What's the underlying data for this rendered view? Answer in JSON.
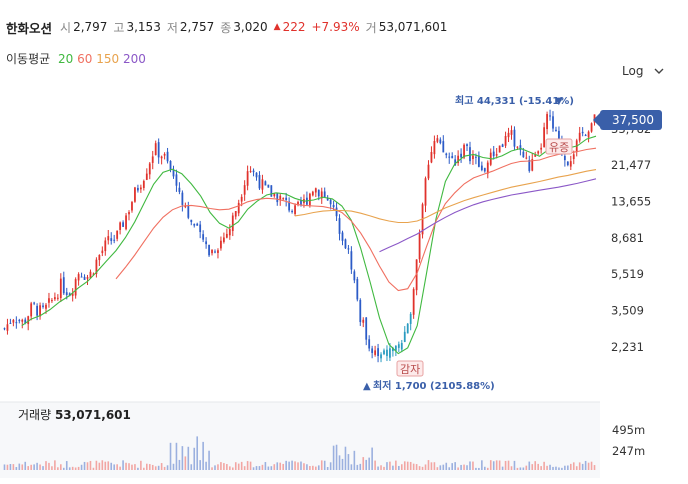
{
  "header": {
    "name": "한화오션",
    "open_label": "시",
    "open": "2,797",
    "high_label": "고",
    "high": "3,153",
    "low_label": "저",
    "low": "2,757",
    "close_label": "종",
    "close": "3,020",
    "change": "222",
    "change_pct": "+7.93%",
    "volume_label": "거",
    "volume": "53,071,601"
  },
  "moving_averages": {
    "label": "이동평균",
    "items": [
      {
        "period": "20",
        "color": "#41b941"
      },
      {
        "period": "60",
        "color": "#f07061"
      },
      {
        "period": "150",
        "color": "#e8a34e"
      },
      {
        "period": "200",
        "color": "#8b58c7"
      }
    ]
  },
  "log_toggle": {
    "label": "Log"
  },
  "current_price": "37,500",
  "volume_panel": {
    "label": "거래량",
    "value": "53,071,601",
    "ticks": [
      "495m",
      "247m"
    ]
  },
  "chart_data": {
    "type": "candlestick",
    "scale": "log",
    "y_ticks": [
      33782,
      21477,
      13655,
      8681,
      5519,
      3509,
      2231
    ],
    "y_tick_labels": [
      "33,782",
      "21,477",
      "13,655",
      "8,681",
      "5,519",
      "3,509",
      "2,231"
    ],
    "ylim": [
      1550,
      46000
    ],
    "max_annotation": "최고 44,331 (-15.41%)",
    "min_annotation": "최저 1,700 (2105.88%)",
    "events": [
      {
        "label": "감자"
      },
      {
        "label": "유증"
      }
    ],
    "price_path": [
      2800,
      3300,
      3000,
      3700,
      3400,
      3900,
      4800,
      4400,
      5800,
      5300,
      6800,
      8200,
      8800,
      11500,
      15500,
      19500,
      26500,
      24000,
      18800,
      14200,
      10400,
      8600,
      7300,
      8200,
      9600,
      13800,
      21000,
      18400,
      15300,
      14800,
      13400,
      12000,
      13500,
      16400,
      15300,
      12400,
      9400,
      6400,
      3200,
      2300,
      1900,
      2100,
      2200,
      2600,
      6600,
      21000,
      29000,
      24500,
      22500,
      26500,
      24000,
      19800,
      23800,
      27500,
      31500,
      26000,
      21000,
      23800,
      40000,
      29500,
      22500,
      27000,
      33500,
      37500
    ],
    "ma_lines": [
      {
        "name": "20",
        "values": [
          null,
          null,
          2900,
          3150,
          3300,
          3550,
          3900,
          4200,
          4650,
          5050,
          5700,
          6500,
          7400,
          8700,
          10600,
          13400,
          16900,
          19600,
          20400,
          19300,
          17000,
          14600,
          11900,
          10400,
          9800,
          10600,
          12400,
          13700,
          14800,
          15200,
          15000,
          14200,
          13700,
          13900,
          14400,
          14100,
          12900,
          10800,
          7600,
          5000,
          3200,
          2300,
          2050,
          2200,
          2900,
          5600,
          11000,
          17500,
          21800,
          24000,
          24500,
          23600,
          23200,
          24100,
          25600,
          26400,
          25200,
          24000,
          26200,
          27400,
          26500,
          27300,
          29700,
          30800
        ]
      },
      {
        "name": "60",
        "values": [
          null,
          null,
          null,
          null,
          null,
          null,
          null,
          null,
          null,
          null,
          null,
          null,
          5200,
          6000,
          7000,
          8300,
          9800,
          11200,
          12300,
          12900,
          13000,
          12800,
          12500,
          12300,
          12400,
          12900,
          13600,
          14000,
          14200,
          14100,
          13700,
          13200,
          13000,
          12900,
          12800,
          12500,
          11900,
          10700,
          9200,
          7600,
          6100,
          5000,
          4500,
          4600,
          5600,
          7800,
          10700,
          13300,
          15200,
          17000,
          18300,
          19100,
          19900,
          20900,
          21900,
          22500,
          22600,
          22900,
          23800,
          24500,
          24900,
          25400,
          26100,
          26500
        ]
      },
      {
        "name": "150",
        "values": [
          null,
          null,
          null,
          null,
          null,
          null,
          null,
          null,
          null,
          null,
          null,
          null,
          null,
          null,
          null,
          null,
          null,
          null,
          null,
          null,
          null,
          null,
          null,
          null,
          null,
          null,
          null,
          null,
          null,
          null,
          null,
          11400,
          11600,
          11900,
          12100,
          12200,
          12200,
          12100,
          11800,
          11400,
          11000,
          10700,
          10500,
          10500,
          10700,
          11200,
          11900,
          12600,
          13200,
          13800,
          14300,
          14800,
          15300,
          15800,
          16300,
          16700,
          17100,
          17500,
          18000,
          18500,
          18900,
          19400,
          19900,
          20300
        ]
      },
      {
        "name": "200",
        "values": [
          null,
          null,
          null,
          null,
          null,
          null,
          null,
          null,
          null,
          null,
          null,
          null,
          null,
          null,
          null,
          null,
          null,
          null,
          null,
          null,
          null,
          null,
          null,
          null,
          null,
          null,
          null,
          null,
          null,
          null,
          null,
          null,
          null,
          null,
          null,
          null,
          null,
          null,
          null,
          null,
          7300,
          7700,
          8100,
          8600,
          9100,
          9800,
          10500,
          11200,
          11900,
          12500,
          13100,
          13600,
          14000,
          14400,
          14800,
          15100,
          15400,
          15700,
          16000,
          16300,
          16700,
          17100,
          17600,
          18100
        ]
      }
    ]
  },
  "colors": {
    "up": "#e0322c",
    "down": "#2c5bc7",
    "accent": "#3a5fa9",
    "special": "#2a9bc0"
  }
}
